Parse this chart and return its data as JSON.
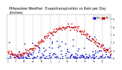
{
  "title": "Milwaukee Weather  Evapotranspiration vs Rain per Day\n(Inches)",
  "title_fontsize": 3.5,
  "background_color": "#ffffff",
  "legend_labels": [
    "Rain",
    "ETo"
  ],
  "legend_colors": [
    "#0000ff",
    "#ff0000"
  ],
  "ylim": [
    0,
    0.55
  ],
  "yticks": [
    0.0,
    0.1,
    0.2,
    0.3,
    0.4,
    0.5
  ],
  "ytick_labels": [
    "0",
    ".1",
    ".2",
    ".3",
    ".4",
    ".5"
  ],
  "grid_color": "#aaaaaa",
  "dot_size": 1.5,
  "months_x": [
    0,
    31,
    59,
    90,
    120,
    151,
    181,
    212,
    243,
    273,
    304,
    334,
    365
  ],
  "month_labels": [
    "J",
    "F",
    "M",
    "A",
    "M",
    "J",
    "J",
    "A",
    "S",
    "O",
    "N",
    "D"
  ]
}
